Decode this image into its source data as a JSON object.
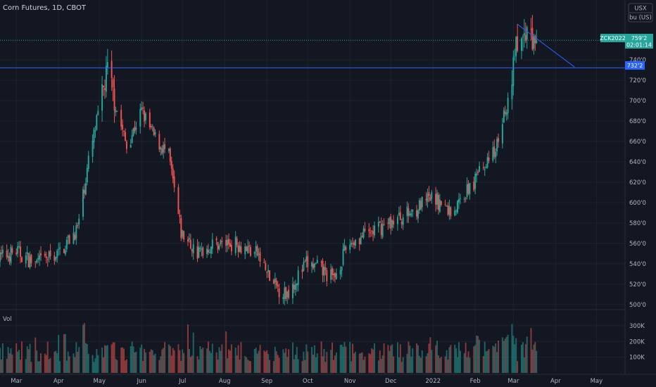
{
  "header": {
    "title": "Corn Futures, 1D, CBOT",
    "currency_button": "USX",
    "unit_button": "bu (US)"
  },
  "price_labels": {
    "symbol": "ZCK2022",
    "last_price": "759'2",
    "countdown": "02:01:14",
    "hline_price": "732'2"
  },
  "volume_panel": {
    "label": "Vol"
  },
  "colors": {
    "background": "#131722",
    "up": "#26a69a",
    "down": "#ef5350",
    "line": "#2962ff",
    "grid": "#1e222d",
    "text": "#b2b5be"
  },
  "chart_data": {
    "type": "candlestick",
    "title": "Corn Futures, 1D, CBOT",
    "currency": "USX",
    "unit": "bu (US)",
    "y_axis": {
      "range": [
        495,
        785
      ],
      "ticks": [
        "500'0",
        "520'0",
        "540'0",
        "560'0",
        "580'0",
        "600'0",
        "620'0",
        "640'0",
        "660'0",
        "680'0",
        "700'0",
        "720'0",
        "740'0"
      ]
    },
    "x_axis": {
      "ticks": [
        "Mar",
        "Apr",
        "May",
        "Jun",
        "Jul",
        "Aug",
        "Sep",
        "Oct",
        "Nov",
        "Dec",
        "2022",
        "Feb",
        "Mar",
        "Apr",
        "May"
      ]
    },
    "volume_axis": {
      "range": [
        0,
        380000
      ],
      "ticks": [
        "300K",
        "200K",
        "100K"
      ]
    },
    "last_price": 759.25,
    "horizontal_line": 732.25,
    "trend_line": {
      "from": {
        "date": "2022-03-04",
        "price": 775
      },
      "to": {
        "date": "2022-04-15",
        "price": 733
      }
    },
    "approx_closes": [
      {
        "date": "2021-02-15",
        "close": 545
      },
      {
        "date": "2021-03-01",
        "close": 552
      },
      {
        "date": "2021-03-15",
        "close": 540
      },
      {
        "date": "2021-04-01",
        "close": 550
      },
      {
        "date": "2021-04-15",
        "close": 575
      },
      {
        "date": "2021-04-23",
        "close": 640
      },
      {
        "date": "2021-05-07",
        "close": 730
      },
      {
        "date": "2021-05-14",
        "close": 690
      },
      {
        "date": "2021-05-21",
        "close": 655
      },
      {
        "date": "2021-06-01",
        "close": 690
      },
      {
        "date": "2021-06-10",
        "close": 665
      },
      {
        "date": "2021-06-21",
        "close": 645
      },
      {
        "date": "2021-06-30",
        "close": 570
      },
      {
        "date": "2021-07-12",
        "close": 550
      },
      {
        "date": "2021-07-25",
        "close": 560
      },
      {
        "date": "2021-08-10",
        "close": 560
      },
      {
        "date": "2021-08-25",
        "close": 550
      },
      {
        "date": "2021-09-05",
        "close": 520
      },
      {
        "date": "2021-09-15",
        "close": 510
      },
      {
        "date": "2021-09-30",
        "close": 540
      },
      {
        "date": "2021-10-10",
        "close": 535
      },
      {
        "date": "2021-10-20",
        "close": 525
      },
      {
        "date": "2021-10-31",
        "close": 560
      },
      {
        "date": "2021-11-15",
        "close": 570
      },
      {
        "date": "2021-11-30",
        "close": 580
      },
      {
        "date": "2021-12-15",
        "close": 590
      },
      {
        "date": "2022-01-01",
        "close": 605
      },
      {
        "date": "2022-01-15",
        "close": 590
      },
      {
        "date": "2022-01-31",
        "close": 620
      },
      {
        "date": "2022-02-15",
        "close": 650
      },
      {
        "date": "2022-02-25",
        "close": 700
      },
      {
        "date": "2022-03-04",
        "close": 760
      },
      {
        "date": "2022-03-18",
        "close": 759.25
      }
    ]
  }
}
